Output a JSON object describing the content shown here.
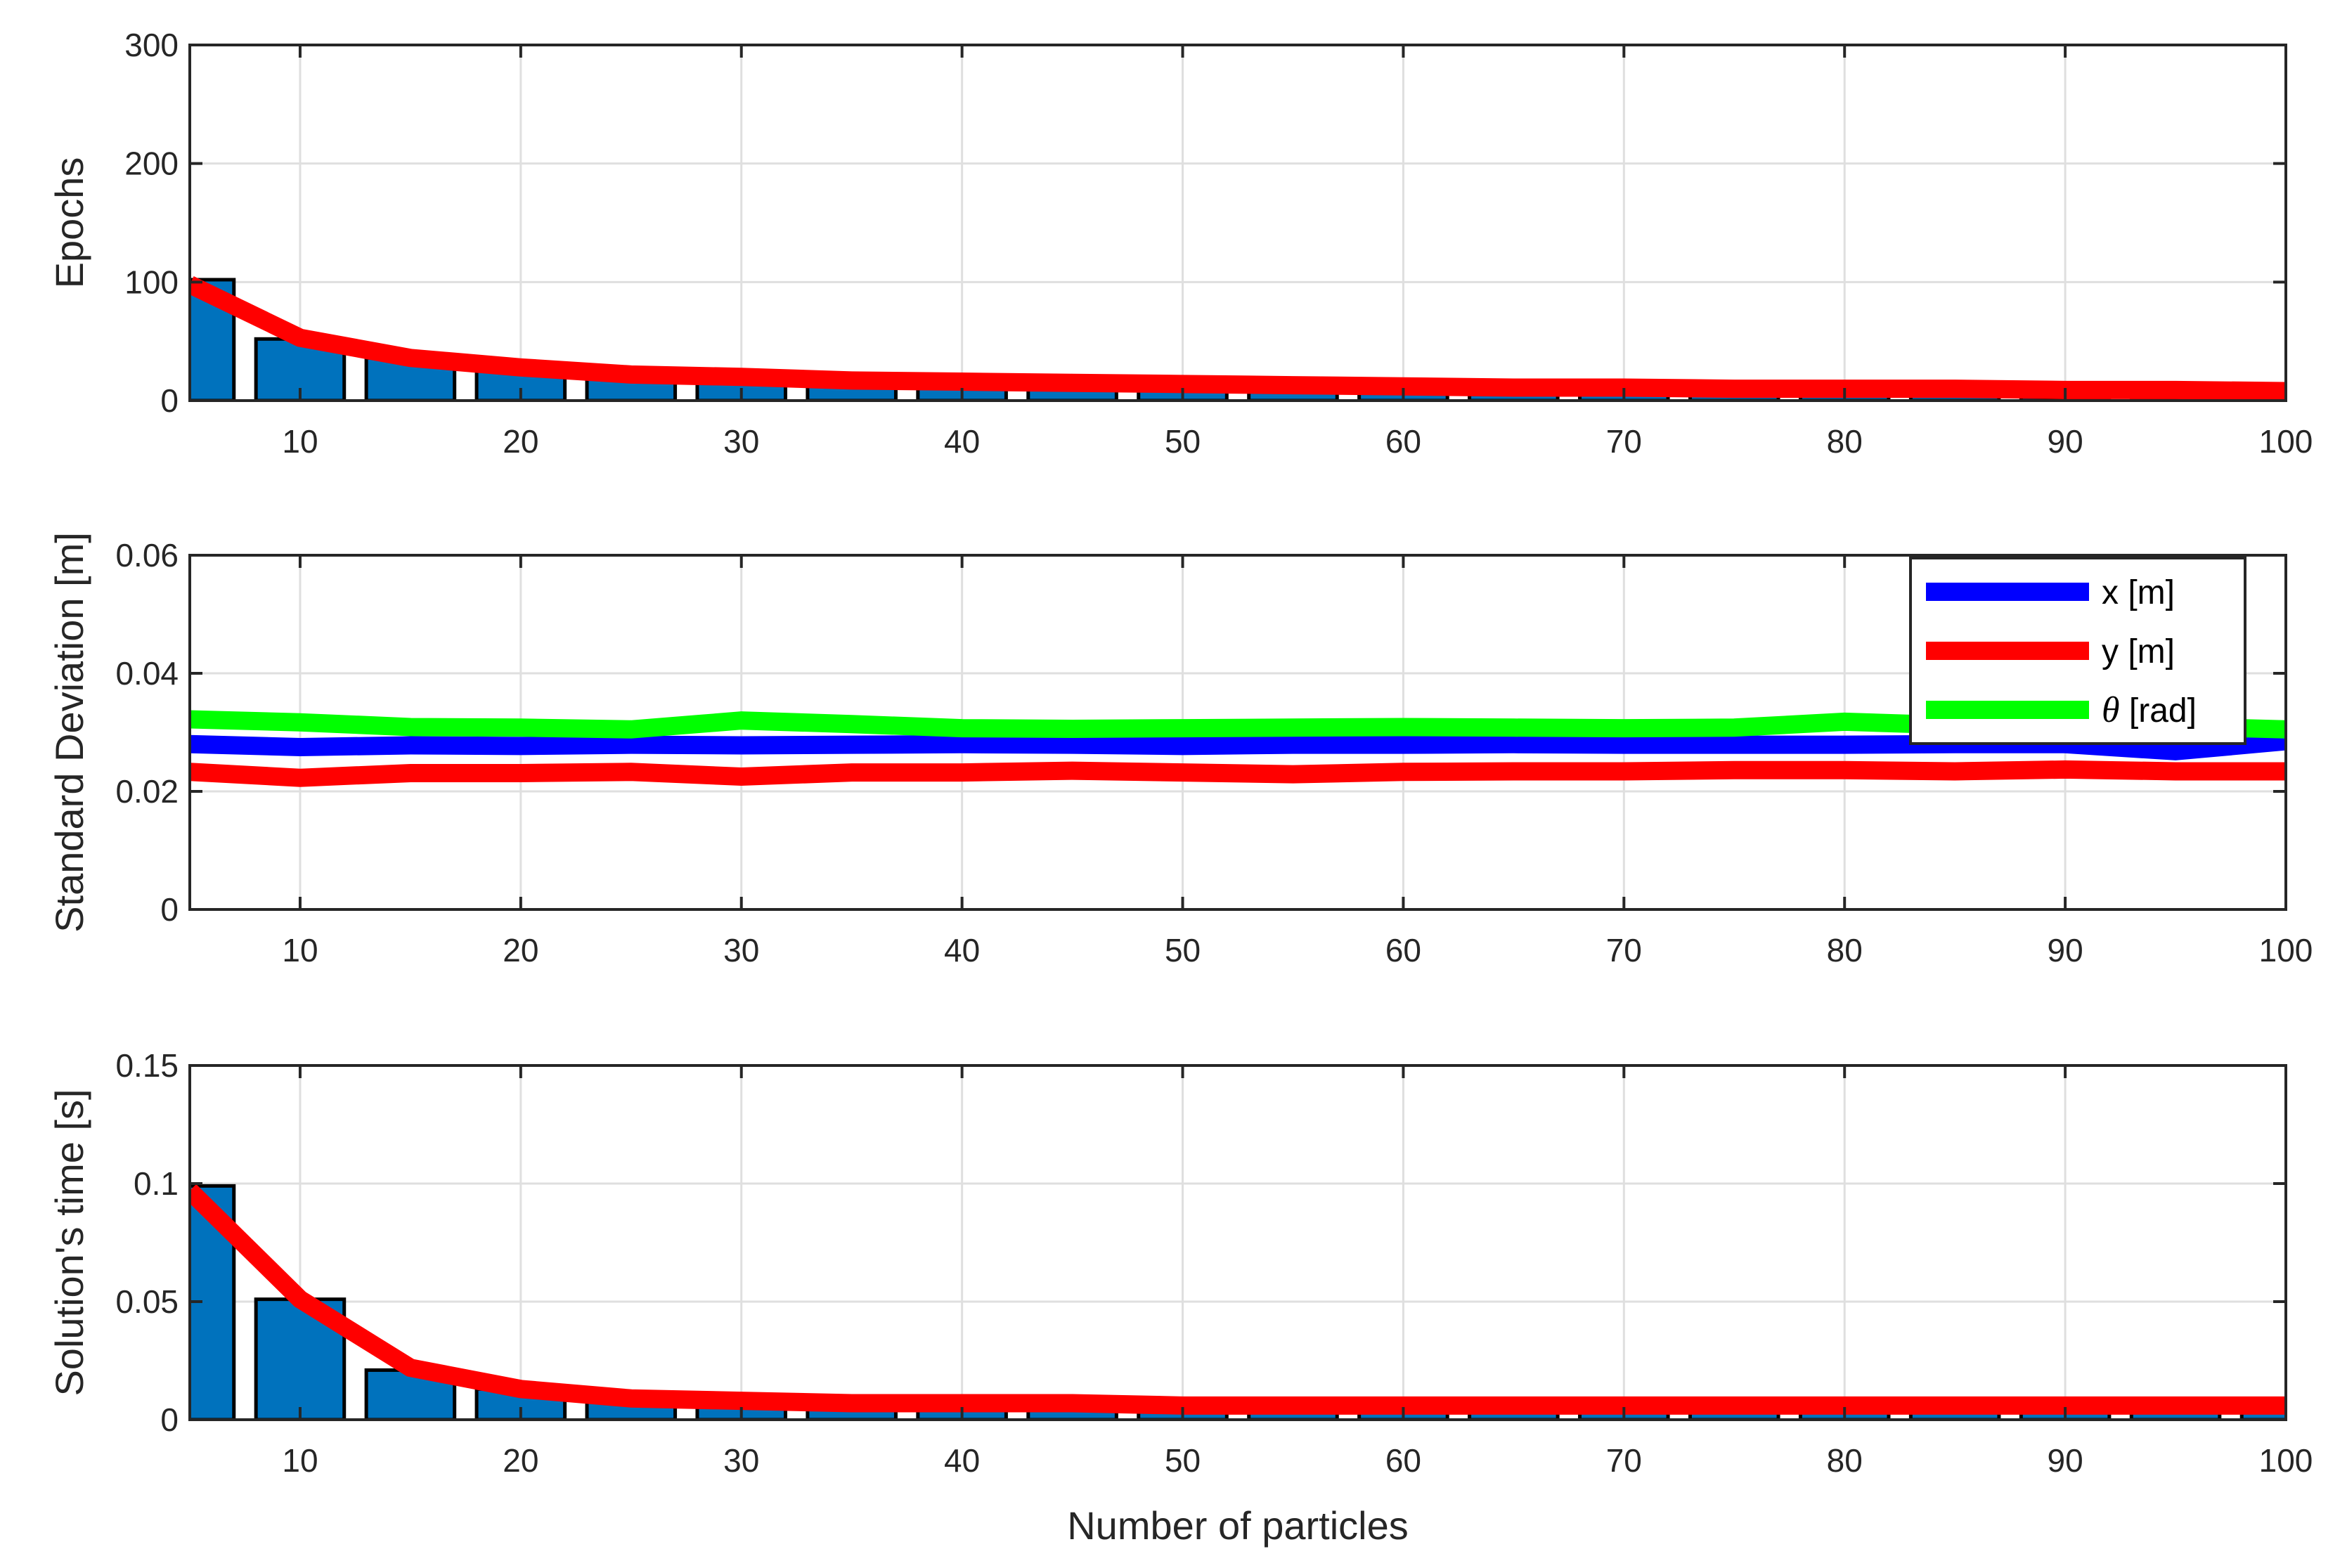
{
  "chart_data": [
    {
      "type": "bar",
      "panel": "top",
      "ylabel": "Epochs",
      "xlabel": "",
      "xlim": [
        5,
        100
      ],
      "ylim": [
        0,
        300
      ],
      "xticks": [
        10,
        20,
        30,
        40,
        50,
        60,
        70,
        80,
        90,
        100
      ],
      "yticks": [
        0,
        100,
        200,
        300
      ],
      "ytick_labels": [
        "0",
        "100",
        "200",
        "300"
      ],
      "grid": true,
      "x": [
        5,
        10,
        15,
        20,
        25,
        30,
        35,
        40,
        45,
        50,
        55,
        60,
        65,
        70,
        75,
        80,
        85,
        90,
        95,
        100
      ],
      "bars": [
        102,
        52,
        36,
        30,
        24,
        20,
        18,
        17,
        16,
        15,
        14,
        13,
        12,
        11,
        10,
        10,
        10,
        10,
        9,
        9
      ],
      "line": [
        98,
        53,
        36,
        28,
        22,
        20,
        17,
        16,
        15,
        14,
        13,
        12,
        11,
        11,
        10,
        10,
        10,
        9,
        9,
        8
      ],
      "bar_color": "#0072BD",
      "line_color": "#FF0000"
    },
    {
      "type": "line",
      "panel": "middle",
      "ylabel": "Standard Deviation [m]",
      "xlabel": "",
      "xlim": [
        5,
        100
      ],
      "ylim": [
        0,
        0.06
      ],
      "xticks": [
        10,
        20,
        30,
        40,
        50,
        60,
        70,
        80,
        90,
        100
      ],
      "yticks": [
        0,
        0.02,
        0.04,
        0.06
      ],
      "ytick_labels": [
        "0",
        "0.02",
        "0.04",
        "0.06"
      ],
      "grid": true,
      "legend_position": "top-right",
      "x": [
        5,
        10,
        15,
        20,
        25,
        30,
        35,
        40,
        45,
        50,
        55,
        60,
        65,
        70,
        75,
        80,
        85,
        90,
        95,
        100
      ],
      "series": [
        {
          "name": "x [m]",
          "color": "#0000FF",
          "values": [
            0.028,
            0.0275,
            0.0278,
            0.0277,
            0.0279,
            0.0278,
            0.0279,
            0.028,
            0.0279,
            0.0277,
            0.0279,
            0.0279,
            0.028,
            0.0279,
            0.0279,
            0.0279,
            0.028,
            0.028,
            0.0268,
            0.0285
          ]
        },
        {
          "name": "y [m]",
          "color": "#FF0000",
          "values": [
            0.0233,
            0.0223,
            0.0231,
            0.0231,
            0.0233,
            0.0225,
            0.0232,
            0.0232,
            0.0235,
            0.0232,
            0.0229,
            0.0233,
            0.0234,
            0.0234,
            0.0236,
            0.0236,
            0.0234,
            0.0237,
            0.0234,
            0.0234
          ]
        },
        {
          "name": "θ [rad]",
          "name_symbol": "θ",
          "name_rest": " [rad]",
          "color": "#00FF00",
          "values": [
            0.0322,
            0.0317,
            0.0309,
            0.0308,
            0.0305,
            0.032,
            0.0314,
            0.0307,
            0.0306,
            0.0307,
            0.0308,
            0.0309,
            0.0308,
            0.0307,
            0.0308,
            0.0318,
            0.0312,
            0.031,
            0.031,
            0.0305
          ]
        }
      ]
    },
    {
      "type": "bar",
      "panel": "bottom",
      "ylabel": "Solution's time [s]",
      "xlabel": "Number of particles",
      "xlim": [
        5,
        100
      ],
      "ylim": [
        0,
        0.15
      ],
      "xticks": [
        10,
        20,
        30,
        40,
        50,
        60,
        70,
        80,
        90,
        100
      ],
      "yticks": [
        0,
        0.05,
        0.1,
        0.15
      ],
      "ytick_labels": [
        "0",
        "0.05",
        "0.1",
        "0.15"
      ],
      "grid": true,
      "x": [
        5,
        10,
        15,
        20,
        25,
        30,
        35,
        40,
        45,
        50,
        55,
        60,
        65,
        70,
        75,
        80,
        85,
        90,
        95,
        100
      ],
      "bars": [
        0.099,
        0.051,
        0.021,
        0.013,
        0.009,
        0.008,
        0.007,
        0.007,
        0.007,
        0.006,
        0.006,
        0.006,
        0.006,
        0.006,
        0.006,
        0.006,
        0.006,
        0.006,
        0.006,
        0.006
      ],
      "line": [
        0.097,
        0.051,
        0.022,
        0.013,
        0.009,
        0.008,
        0.007,
        0.007,
        0.007,
        0.006,
        0.006,
        0.006,
        0.006,
        0.006,
        0.006,
        0.006,
        0.006,
        0.006,
        0.006,
        0.006
      ],
      "bar_color": "#0072BD",
      "line_color": "#FF0000"
    }
  ]
}
